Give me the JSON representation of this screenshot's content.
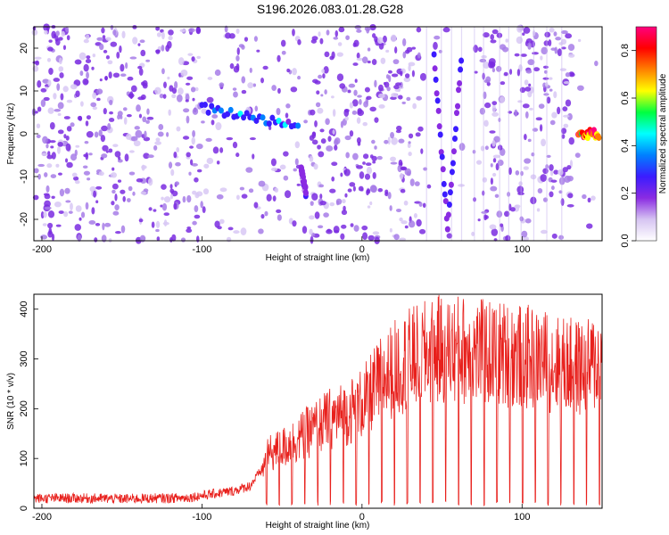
{
  "title": "S196.2026.083.01.28.G28",
  "chart_data": [
    {
      "type": "heatmap",
      "xlabel": "Height of straight line (km)",
      "ylabel": "Frequency (Hz)",
      "xlim": [
        -205,
        150
      ],
      "ylim": [
        -25,
        25
      ],
      "xticks": [
        -200,
        -100,
        0,
        100
      ],
      "yticks": [
        -20,
        -10,
        0,
        10,
        20
      ],
      "colorbar": {
        "label": "Normalized spectral amplitude",
        "range": [
          0,
          0.9
        ],
        "ticks": [
          0.0,
          0.2,
          0.4,
          0.6,
          0.8
        ],
        "colors": [
          "#ffffff",
          "#d6c4f2",
          "#8a2be2",
          "#3b1cff",
          "#0080ff",
          "#00ffff",
          "#00ff40",
          "#ffff00",
          "#ff8000",
          "#ff0000",
          "#ff007f"
        ]
      },
      "features": [
        {
          "x": [
            -100,
            -40
          ],
          "y": [
            6,
            2
          ],
          "level": 0.35
        },
        {
          "x": [
            -38,
            -35
          ],
          "y": [
            -8,
            -14
          ],
          "level": 0.2
        },
        {
          "x": [
            45,
            62
          ],
          "y": [
            18,
            -22
          ],
          "level": 0.25
        },
        {
          "x": [
            135,
            148
          ],
          "y": [
            0,
            0
          ],
          "level": 0.85
        }
      ]
    },
    {
      "type": "line",
      "xlabel": "Height of straight line (km)",
      "ylabel": "SNR (10 * v/v)",
      "xlim": [
        -205,
        150
      ],
      "ylim": [
        0,
        430
      ],
      "xticks": [
        -200,
        -100,
        0,
        100
      ],
      "yticks": [
        0,
        100,
        200,
        300,
        400
      ],
      "series": [
        {
          "color": "#e8201c",
          "x": [
            -205,
            -190,
            -170,
            -150,
            -130,
            -110,
            -90,
            -80,
            -70,
            -62,
            -58,
            -50,
            -40,
            -30,
            -20,
            -10,
            0,
            10,
            20,
            30,
            40,
            50,
            60,
            70,
            80,
            90,
            100,
            110,
            120,
            130,
            140,
            150
          ],
          "y": [
            20,
            20,
            20,
            19,
            20,
            21,
            30,
            35,
            45,
            80,
            110,
            120,
            140,
            160,
            180,
            190,
            210,
            250,
            280,
            300,
            310,
            320,
            320,
            315,
            310,
            310,
            305,
            300,
            290,
            285,
            280,
            300
          ]
        }
      ]
    }
  ]
}
